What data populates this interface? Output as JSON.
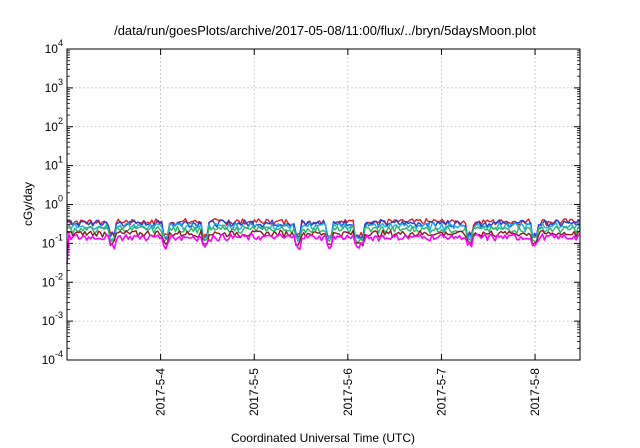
{
  "chart_data": {
    "type": "line",
    "title": "/data/run/goesPlots/archive/2017-05-08/11:00/flux/../bryn/5daysMoon.plot",
    "xlabel": "Coordinated Universal Time (UTC)",
    "ylabel": "cGy/day",
    "yscale": "log",
    "ylim_exponents": [
      -4,
      4
    ],
    "y_tick_labels": [
      {
        "base": "10",
        "exp": "4"
      },
      {
        "base": "10",
        "exp": "3"
      },
      {
        "base": "10",
        "exp": "2"
      },
      {
        "base": "10",
        "exp": "1"
      },
      {
        "base": "10",
        "exp": "0"
      },
      {
        "base": "10",
        "exp": "-1"
      },
      {
        "base": "10",
        "exp": "-2"
      },
      {
        "base": "10",
        "exp": "-3"
      },
      {
        "base": "10",
        "exp": "-4"
      }
    ],
    "x_tick_labels": [
      "2017-5-4",
      "2017-5-5",
      "2017-5-6",
      "2017-5-7",
      "2017-5-8"
    ],
    "xlim_days": [
      0,
      5.48
    ],
    "x_tick_days": [
      1.0,
      2.0,
      3.0,
      4.0,
      5.0
    ],
    "grid": true,
    "legend": "none",
    "series": [
      {
        "color": "#e41a1c",
        "base": 0.36,
        "amp": 0.06
      },
      {
        "color": "#1f3fd6",
        "base": 0.33,
        "amp": 0.06
      },
      {
        "color": "#18b0e8",
        "base": 0.28,
        "amp": 0.05
      },
      {
        "color": "#2ab865",
        "base": 0.23,
        "amp": 0.04
      },
      {
        "color": "#8b1a1a",
        "base": 0.18,
        "amp": 0.03
      },
      {
        "color": "#ff00ff",
        "base": 0.145,
        "amp": 0.025
      }
    ],
    "dips_days": [
      0.48,
      1.05,
      1.48,
      2.47,
      2.8,
      3.1,
      3.15,
      4.3,
      5.0
    ]
  }
}
